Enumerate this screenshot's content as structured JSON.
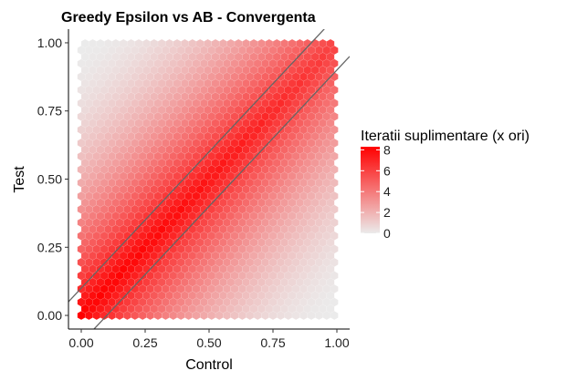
{
  "chart_data": {
    "type": "heatmap",
    "subtype": "hexbin",
    "title": "Greedy Epsilon vs AB - Convergenta",
    "xlabel": "Control",
    "ylabel": "Test",
    "xlim": [
      -0.05,
      1.05
    ],
    "ylim": [
      -0.05,
      1.05
    ],
    "x_ticks": [
      0.0,
      0.25,
      0.5,
      0.75,
      1.0
    ],
    "x_tick_labels": [
      "0.00",
      "0.25",
      "0.50",
      "0.75",
      "1.00"
    ],
    "y_ticks": [
      0.0,
      0.25,
      0.5,
      0.75,
      1.0
    ],
    "y_tick_labels": [
      "0.00",
      "0.25",
      "0.50",
      "0.75",
      "1.00"
    ],
    "grid": false,
    "value_model": "fill = 8 * (1 - |x - y|)^2 ; max near x=0 or y=0 edges, min near x=1,y=1 corner",
    "reference_lines": [
      {
        "intercept": 0.1,
        "slope": 1
      },
      {
        "intercept": -0.1,
        "slope": 1
      }
    ],
    "legend": {
      "title": "Iteratii suplimentare (x ori)",
      "position": "right",
      "min": 0,
      "max": 8.3,
      "ticks": [
        0,
        2,
        4,
        6,
        8
      ],
      "tick_labels": [
        "0",
        "2",
        "4",
        "6",
        "8"
      ],
      "color_low": "#ebebeb",
      "color_high": "#ff0000"
    }
  }
}
